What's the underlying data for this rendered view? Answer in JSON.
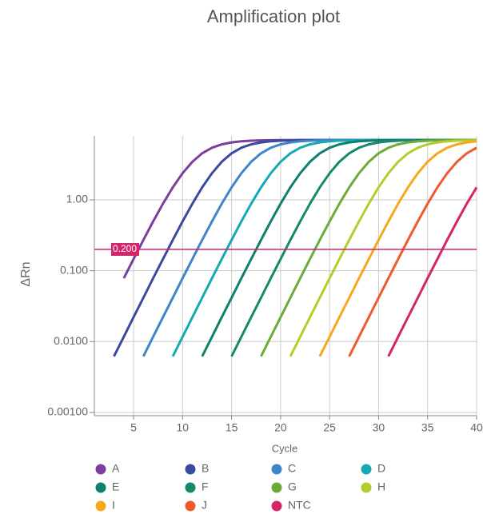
{
  "chart_data": {
    "type": "line",
    "title": "Amplification plot",
    "x_label": "Cycle",
    "y_label": "ΔRn",
    "log_y": true,
    "grid": true,
    "legend": "bottom",
    "x": [
      1,
      2,
      3,
      4,
      5,
      6,
      7,
      8,
      9,
      10,
      11,
      12,
      13,
      14,
      15,
      16,
      17,
      18,
      19,
      20,
      21,
      22,
      23,
      24,
      25,
      26,
      27,
      28,
      29,
      30,
      31,
      32,
      33,
      34,
      35,
      36,
      37,
      38,
      39,
      40
    ],
    "xlim": [
      1,
      40
    ],
    "xticks": [
      5,
      10,
      15,
      20,
      25,
      30,
      35,
      40
    ],
    "ylim": [
      0.0009,
      8
    ],
    "yticks": [
      {
        "value": 0.001,
        "label": "0.00100"
      },
      {
        "value": 0.01,
        "label": "0.0100"
      },
      {
        "value": 0.1,
        "label": "0.100"
      },
      {
        "value": 1,
        "label": "1.00"
      }
    ],
    "threshold": {
      "value": 0.2,
      "label": "0.200",
      "color": "#d4246a"
    },
    "series": [
      {
        "name": "A",
        "color": "#7b3f9e",
        "values": [
          null,
          null,
          null,
          0.0782,
          0.146,
          0.272,
          0.496,
          0.883,
          1.5,
          2.38,
          3.45,
          4.54,
          5.44,
          6.08,
          6.48,
          6.71,
          6.85,
          6.92,
          6.96,
          6.98,
          6.99,
          7,
          7,
          7,
          7,
          7,
          7,
          7,
          7,
          7,
          7,
          7,
          7,
          7,
          7,
          7,
          7,
          7,
          7,
          7
        ]
      },
      {
        "name": "B",
        "color": "#3b4aa0",
        "values": [
          null,
          null,
          0.00618,
          0.0117,
          0.0221,
          0.0415,
          0.0782,
          0.146,
          0.272,
          0.496,
          0.883,
          1.5,
          2.38,
          3.45,
          4.54,
          5.44,
          6.08,
          6.48,
          6.71,
          6.85,
          6.92,
          6.96,
          6.98,
          6.99,
          7,
          7,
          7,
          7,
          7,
          7,
          7,
          7,
          7,
          7,
          7,
          7,
          7,
          7,
          7,
          7
        ]
      },
      {
        "name": "C",
        "color": "#3f86c8",
        "values": [
          null,
          null,
          null,
          null,
          null,
          0.00618,
          0.0117,
          0.0221,
          0.0415,
          0.0782,
          0.146,
          0.272,
          0.496,
          0.883,
          1.5,
          2.38,
          3.45,
          4.54,
          5.44,
          6.08,
          6.48,
          6.71,
          6.85,
          6.92,
          6.96,
          6.98,
          6.99,
          7,
          7,
          7,
          7,
          7,
          7,
          7,
          7,
          7,
          7,
          7,
          7,
          7
        ]
      },
      {
        "name": "D",
        "color": "#14a9b5",
        "values": [
          null,
          null,
          null,
          null,
          null,
          null,
          null,
          null,
          0.00618,
          0.0117,
          0.0221,
          0.0415,
          0.0782,
          0.146,
          0.272,
          0.496,
          0.883,
          1.5,
          2.38,
          3.45,
          4.54,
          5.44,
          6.08,
          6.48,
          6.71,
          6.85,
          6.92,
          6.96,
          6.98,
          6.99,
          7,
          7,
          7,
          7,
          7,
          7,
          7,
          7,
          7,
          7
        ]
      },
      {
        "name": "E",
        "color": "#0f7f6e",
        "values": [
          null,
          null,
          null,
          null,
          null,
          null,
          null,
          null,
          null,
          null,
          null,
          0.00618,
          0.0117,
          0.0221,
          0.0415,
          0.0782,
          0.146,
          0.272,
          0.496,
          0.883,
          1.5,
          2.38,
          3.45,
          4.54,
          5.44,
          6.08,
          6.48,
          6.71,
          6.85,
          6.92,
          6.96,
          6.98,
          6.99,
          7,
          7,
          7,
          7,
          7,
          7,
          7
        ]
      },
      {
        "name": "F",
        "color": "#17896a",
        "values": [
          null,
          null,
          null,
          null,
          null,
          null,
          null,
          null,
          null,
          null,
          null,
          null,
          null,
          null,
          0.00618,
          0.0117,
          0.0221,
          0.0415,
          0.0782,
          0.146,
          0.272,
          0.496,
          0.883,
          1.5,
          2.38,
          3.45,
          4.54,
          5.44,
          6.08,
          6.48,
          6.71,
          6.85,
          6.92,
          6.96,
          6.98,
          6.99,
          7,
          7,
          7,
          7
        ]
      },
      {
        "name": "G",
        "color": "#6aab3a",
        "values": [
          null,
          null,
          null,
          null,
          null,
          null,
          null,
          null,
          null,
          null,
          null,
          null,
          null,
          null,
          null,
          null,
          null,
          0.00618,
          0.0117,
          0.0221,
          0.0415,
          0.0782,
          0.146,
          0.272,
          0.496,
          0.883,
          1.5,
          2.38,
          3.45,
          4.54,
          5.44,
          6.08,
          6.48,
          6.71,
          6.85,
          6.92,
          6.96,
          6.98,
          6.99,
          7
        ]
      },
      {
        "name": "H",
        "color": "#b5cc2e",
        "values": [
          null,
          null,
          null,
          null,
          null,
          null,
          null,
          null,
          null,
          null,
          null,
          null,
          null,
          null,
          null,
          null,
          null,
          null,
          null,
          null,
          0.00618,
          0.0117,
          0.0221,
          0.0415,
          0.0782,
          0.146,
          0.272,
          0.496,
          0.883,
          1.5,
          2.38,
          3.45,
          4.54,
          5.44,
          6.08,
          6.48,
          6.71,
          6.85,
          6.92,
          6.96
        ]
      },
      {
        "name": "I",
        "color": "#f5a81c",
        "values": [
          null,
          null,
          null,
          null,
          null,
          null,
          null,
          null,
          null,
          null,
          null,
          null,
          null,
          null,
          null,
          null,
          null,
          null,
          null,
          null,
          null,
          null,
          null,
          0.00618,
          0.0117,
          0.0221,
          0.0415,
          0.0782,
          0.146,
          0.272,
          0.496,
          0.883,
          1.5,
          2.38,
          3.45,
          4.54,
          5.44,
          6.08,
          6.48,
          6.71
        ]
      },
      {
        "name": "J",
        "color": "#ef5a2a",
        "values": [
          null,
          null,
          null,
          null,
          null,
          null,
          null,
          null,
          null,
          null,
          null,
          null,
          null,
          null,
          null,
          null,
          null,
          null,
          null,
          null,
          null,
          null,
          null,
          null,
          null,
          null,
          0.00618,
          0.0117,
          0.0221,
          0.0415,
          0.0782,
          0.146,
          0.272,
          0.496,
          0.883,
          1.5,
          2.38,
          3.45,
          4.54,
          5.44
        ]
      },
      {
        "name": "NTC",
        "color": "#d4246a",
        "values": [
          null,
          null,
          null,
          null,
          null,
          null,
          null,
          null,
          null,
          null,
          null,
          null,
          null,
          null,
          null,
          null,
          null,
          null,
          null,
          null,
          null,
          null,
          null,
          null,
          null,
          null,
          null,
          null,
          null,
          null,
          0.00618,
          0.0117,
          0.0221,
          0.0415,
          0.0782,
          0.146,
          0.272,
          0.496,
          0.883,
          1.5
        ]
      }
    ]
  }
}
